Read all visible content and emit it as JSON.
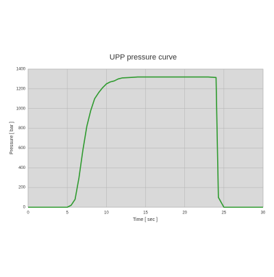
{
  "chart_data": {
    "type": "line",
    "title": "UPP pressure curve",
    "x_label": "Time [ sec ]",
    "y_label": "Pressure [ bar ]",
    "x": [
      0,
      5,
      5.5,
      6,
      6.5,
      7,
      7.5,
      8,
      8.5,
      9,
      9.5,
      10,
      10.5,
      11,
      11.5,
      12,
      13,
      14,
      15,
      20,
      23,
      24,
      24.3,
      25,
      30
    ],
    "series": [
      {
        "color": "#2e9a2e",
        "values": [
          0,
          0,
          20,
          80,
          300,
          580,
          820,
          980,
          1100,
          1160,
          1210,
          1250,
          1270,
          1280,
          1300,
          1310,
          1315,
          1320,
          1320,
          1320,
          1320,
          1315,
          100,
          0,
          0
        ]
      }
    ],
    "xlim": [
      0,
      30
    ],
    "xticks": [
      0,
      5,
      10,
      15,
      20,
      25,
      30
    ],
    "ylim": [
      0,
      1400
    ],
    "yticks": [
      0,
      200,
      400,
      600,
      800,
      1000,
      1200,
      1400
    ],
    "grid": true
  }
}
